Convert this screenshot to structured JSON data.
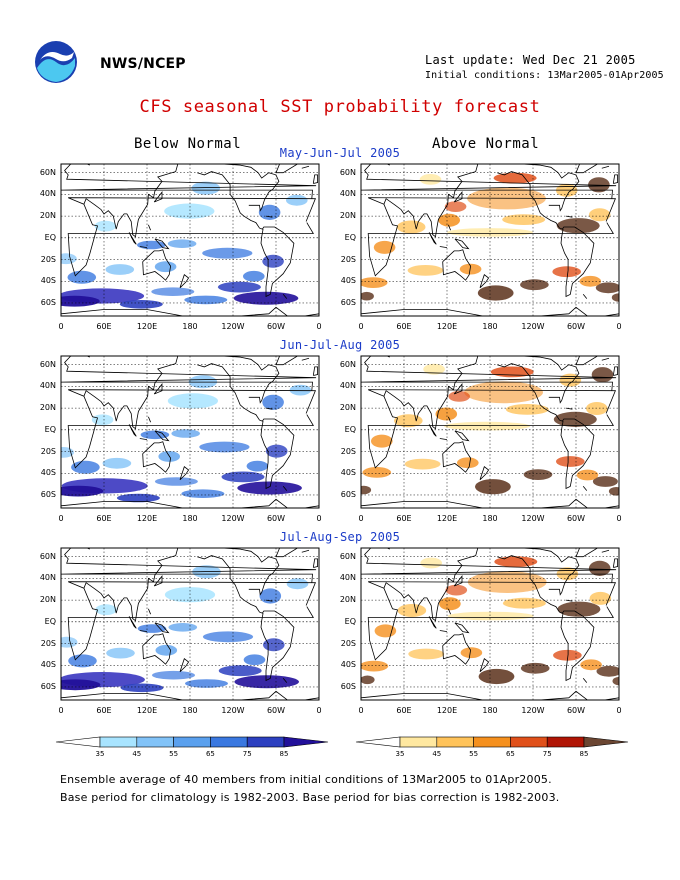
{
  "header": {
    "org": "NWS/NCEP",
    "last_update": "Last update: Wed Dec 21 2005",
    "initial_conditions": "Initial conditions: 13Mar2005-01Apr2005",
    "title": "CFS seasonal SST probability forecast",
    "logo_icon": "noaa-logo-icon"
  },
  "columns": {
    "below": "Below Normal",
    "above": "Above Normal"
  },
  "periods": [
    "May-Jun-Jul 2005",
    "Jun-Jul-Aug 2005",
    "Jul-Aug-Sep 2005"
  ],
  "axes": {
    "lat_ticks": [
      "60N",
      "40N",
      "20N",
      "EQ",
      "20S",
      "40S",
      "60S"
    ],
    "lon_ticks": [
      "0",
      "60E",
      "120E",
      "180",
      "120W",
      "60W",
      "0"
    ]
  },
  "legend": {
    "below": {
      "levels": [
        "35",
        "45",
        "55",
        "65",
        "75",
        "85"
      ],
      "colors": [
        "#ffffff",
        "#a8e4ff",
        "#82c3f8",
        "#5aa0ee",
        "#3a78e0",
        "#2c40c0",
        "#22109a"
      ]
    },
    "above": {
      "levels": [
        "35",
        "45",
        "55",
        "65",
        "75",
        "85"
      ],
      "colors": [
        "#ffffff",
        "#ffe8a0",
        "#ffc35a",
        "#f5901e",
        "#e0501a",
        "#b01404",
        "#6b4632"
      ]
    }
  },
  "footnotes": {
    "line1": "Ensemble average of 40 members from initial conditions of 13Mar2005 to 01Apr2005.",
    "line2": "Base period for climatology is 1982-2003. Base period for bias correction is 1982-2003."
  }
}
